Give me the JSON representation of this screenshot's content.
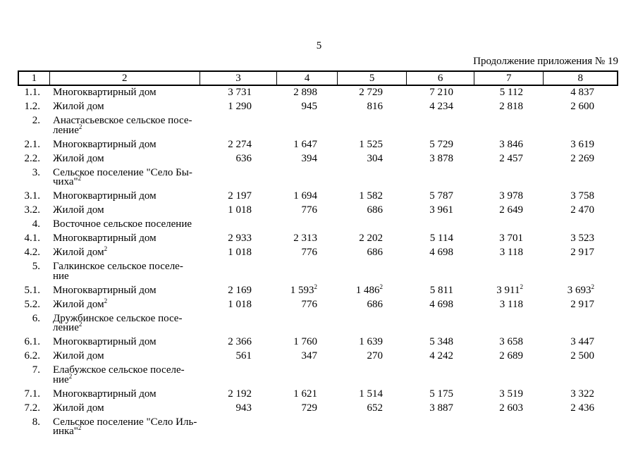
{
  "page": {
    "number": "5",
    "continuation_note": "Продолжение приложения № 19"
  },
  "table": {
    "column_headers": [
      "1",
      "2",
      "3",
      "4",
      "5",
      "6",
      "7",
      "8"
    ],
    "rows": [
      {
        "kind": "item",
        "num": "1.1.",
        "label": "Многоквартирный дом",
        "values": [
          "3 731",
          "2 898",
          "2 729",
          "7 210",
          "5 112",
          "4 837"
        ]
      },
      {
        "kind": "item",
        "num": "1.2.",
        "label": "Жилой дом",
        "values": [
          "1 290",
          "945",
          "816",
          "4 234",
          "2 818",
          "2 600"
        ]
      },
      {
        "kind": "section",
        "num": "2.",
        "lines": [
          "Анастасьевское сельское посе-",
          "ление^2"
        ]
      },
      {
        "kind": "item",
        "num": "2.1.",
        "label": "Многоквартирный дом",
        "values": [
          "2 274",
          "1 647",
          "1 525",
          "5 729",
          "3 846",
          "3 619"
        ]
      },
      {
        "kind": "item",
        "num": "2.2.",
        "label": "Жилой дом",
        "values": [
          "636",
          "394",
          "304",
          "3 878",
          "2 457",
          "2 269"
        ]
      },
      {
        "kind": "section",
        "num": "3.",
        "lines": [
          "Сельское поселение \"Село Бы-",
          "чиха\"^2"
        ]
      },
      {
        "kind": "item",
        "num": "3.1.",
        "label": "Многоквартирный дом",
        "values": [
          "2 197",
          "1 694",
          "1 582",
          "5 787",
          "3 978",
          "3 758"
        ]
      },
      {
        "kind": "item",
        "num": "3.2.",
        "label": "Жилой дом",
        "values": [
          "1 018",
          "776",
          "686",
          "3 961",
          "2 649",
          "2 470"
        ]
      },
      {
        "kind": "section",
        "num": "4.",
        "lines": [
          "Восточное сельское поселение"
        ]
      },
      {
        "kind": "item",
        "num": "4.1.",
        "label": "Многоквартирный дом",
        "values": [
          "2 933",
          "2 313",
          "2 202",
          "5 114",
          "3 701",
          "3 523"
        ]
      },
      {
        "kind": "item",
        "num": "4.2.",
        "label": "Жилой дом^2",
        "values": [
          "1 018",
          "776",
          "686",
          "4 698",
          "3 118",
          "2 917"
        ]
      },
      {
        "kind": "section",
        "num": "5.",
        "lines": [
          "Галкинское сельское поселе-",
          "ние"
        ]
      },
      {
        "kind": "item",
        "num": "5.1.",
        "label": "Многоквартирный дом",
        "values": [
          "2 169",
          "1 593^2",
          "1 486^2",
          "5 811",
          "3 911^2",
          "3 693^2"
        ]
      },
      {
        "kind": "item",
        "num": "5.2.",
        "label": "Жилой дом^2",
        "values": [
          "1 018",
          "776",
          "686",
          "4 698",
          "3 118",
          "2 917"
        ]
      },
      {
        "kind": "section",
        "num": "6.",
        "lines": [
          "Дружбинское сельское посе-",
          "ление^2"
        ]
      },
      {
        "kind": "item",
        "num": "6.1.",
        "label": "Многоквартирный дом",
        "values": [
          "2 366",
          "1 760",
          "1 639",
          "5 348",
          "3 658",
          "3 447"
        ]
      },
      {
        "kind": "item",
        "num": "6.2.",
        "label": "Жилой дом",
        "values": [
          "561",
          "347",
          "270",
          "4 242",
          "2 689",
          "2 500"
        ]
      },
      {
        "kind": "section",
        "num": "7.",
        "lines": [
          "Елабужское сельское поселе-",
          "ние^2"
        ]
      },
      {
        "kind": "item",
        "num": "7.1.",
        "label": "Многоквартирный дом",
        "values": [
          "2 192",
          "1 621",
          "1 514",
          "5 175",
          "3 519",
          "3 322"
        ]
      },
      {
        "kind": "item",
        "num": "7.2.",
        "label": "Жилой дом",
        "values": [
          "943",
          "729",
          "652",
          "3 887",
          "2 603",
          "2 436"
        ]
      },
      {
        "kind": "section",
        "num": "8.",
        "lines": [
          "Сельское поселение \"Село Иль-",
          "инка\"^2"
        ]
      }
    ]
  }
}
